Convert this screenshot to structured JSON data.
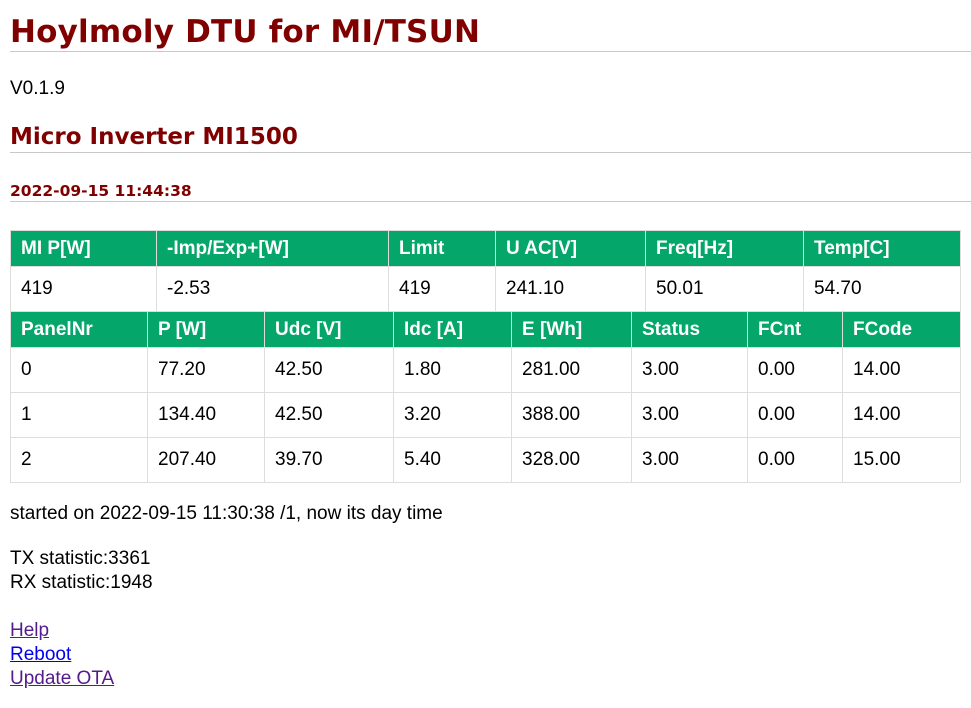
{
  "header": {
    "title": "Hoylmoly DTU for MI/TSUN",
    "version": "V0.1.9"
  },
  "inverter": {
    "title": "Micro Inverter MI1500",
    "datetime": "2022-09-15 11:44:38"
  },
  "summary_table": {
    "headers": [
      "MI P[W]",
      "-Imp/Exp+[W]",
      "Limit",
      "U AC[V]",
      "Freq[Hz]",
      "Temp[C]"
    ],
    "row": [
      "419",
      "-2.53",
      "419",
      "241.10",
      "50.01",
      "54.70"
    ]
  },
  "panel_table": {
    "headers": [
      "PanelNr",
      "P [W]",
      "Udc [V]",
      "Idc [A]",
      "E [Wh]",
      "Status",
      "FCnt",
      "FCode"
    ],
    "rows": [
      [
        "0",
        "77.20",
        "42.50",
        "1.80",
        "281.00",
        "3.00",
        "0.00",
        "14.00"
      ],
      [
        "1",
        "134.40",
        "42.50",
        "3.20",
        "388.00",
        "3.00",
        "0.00",
        "14.00"
      ],
      [
        "2",
        "207.40",
        "39.70",
        "5.40",
        "328.00",
        "3.00",
        "0.00",
        "15.00"
      ]
    ]
  },
  "status": {
    "started": "started on 2022-09-15 11:30:38 /1, now its day time",
    "tx": "TX statistic:3361",
    "rx": "RX statistic:1948"
  },
  "links": {
    "help": "Help",
    "reboot": "Reboot",
    "update": "Update OTA"
  },
  "colors": {
    "heading": "#800000",
    "table_header": "#04a66a",
    "link_visited": "#551a8b",
    "link_unvisited": "#0000ee"
  }
}
